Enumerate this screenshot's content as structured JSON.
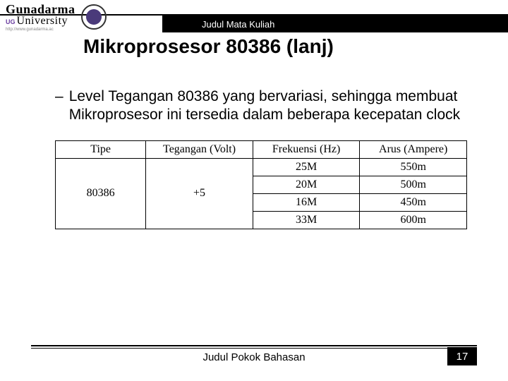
{
  "header": {
    "logo_line1": "Gunadarma",
    "logo_ug": "UG",
    "logo_line2": "University",
    "logo_url": "http://www.gunadarma.ac",
    "bar_label": "Judul Mata Kuliah"
  },
  "title": "Mikroprosesor 80386 (lanj)",
  "bullet": {
    "dash": "–",
    "text": "Level Tegangan 80386 yang bervariasi, sehingga membuat Mikroprosesor ini tersedia dalam beberapa kecepatan clock"
  },
  "table": {
    "columns": [
      "Tipe",
      "Tegangan (Volt)",
      "Frekuensi (Hz)",
      "Arus (Ampere)"
    ],
    "tipe": "80386",
    "tegangan": "+5",
    "rows": [
      {
        "freq": "25M",
        "arus": "550m"
      },
      {
        "freq": "20M",
        "arus": "500m"
      },
      {
        "freq": "16M",
        "arus": "450m"
      },
      {
        "freq": "33M",
        "arus": "600m"
      }
    ],
    "col_widths": [
      "22%",
      "26%",
      "26%",
      "26%"
    ]
  },
  "footer": {
    "label": "Judul Pokok Bahasan",
    "page": "17"
  }
}
